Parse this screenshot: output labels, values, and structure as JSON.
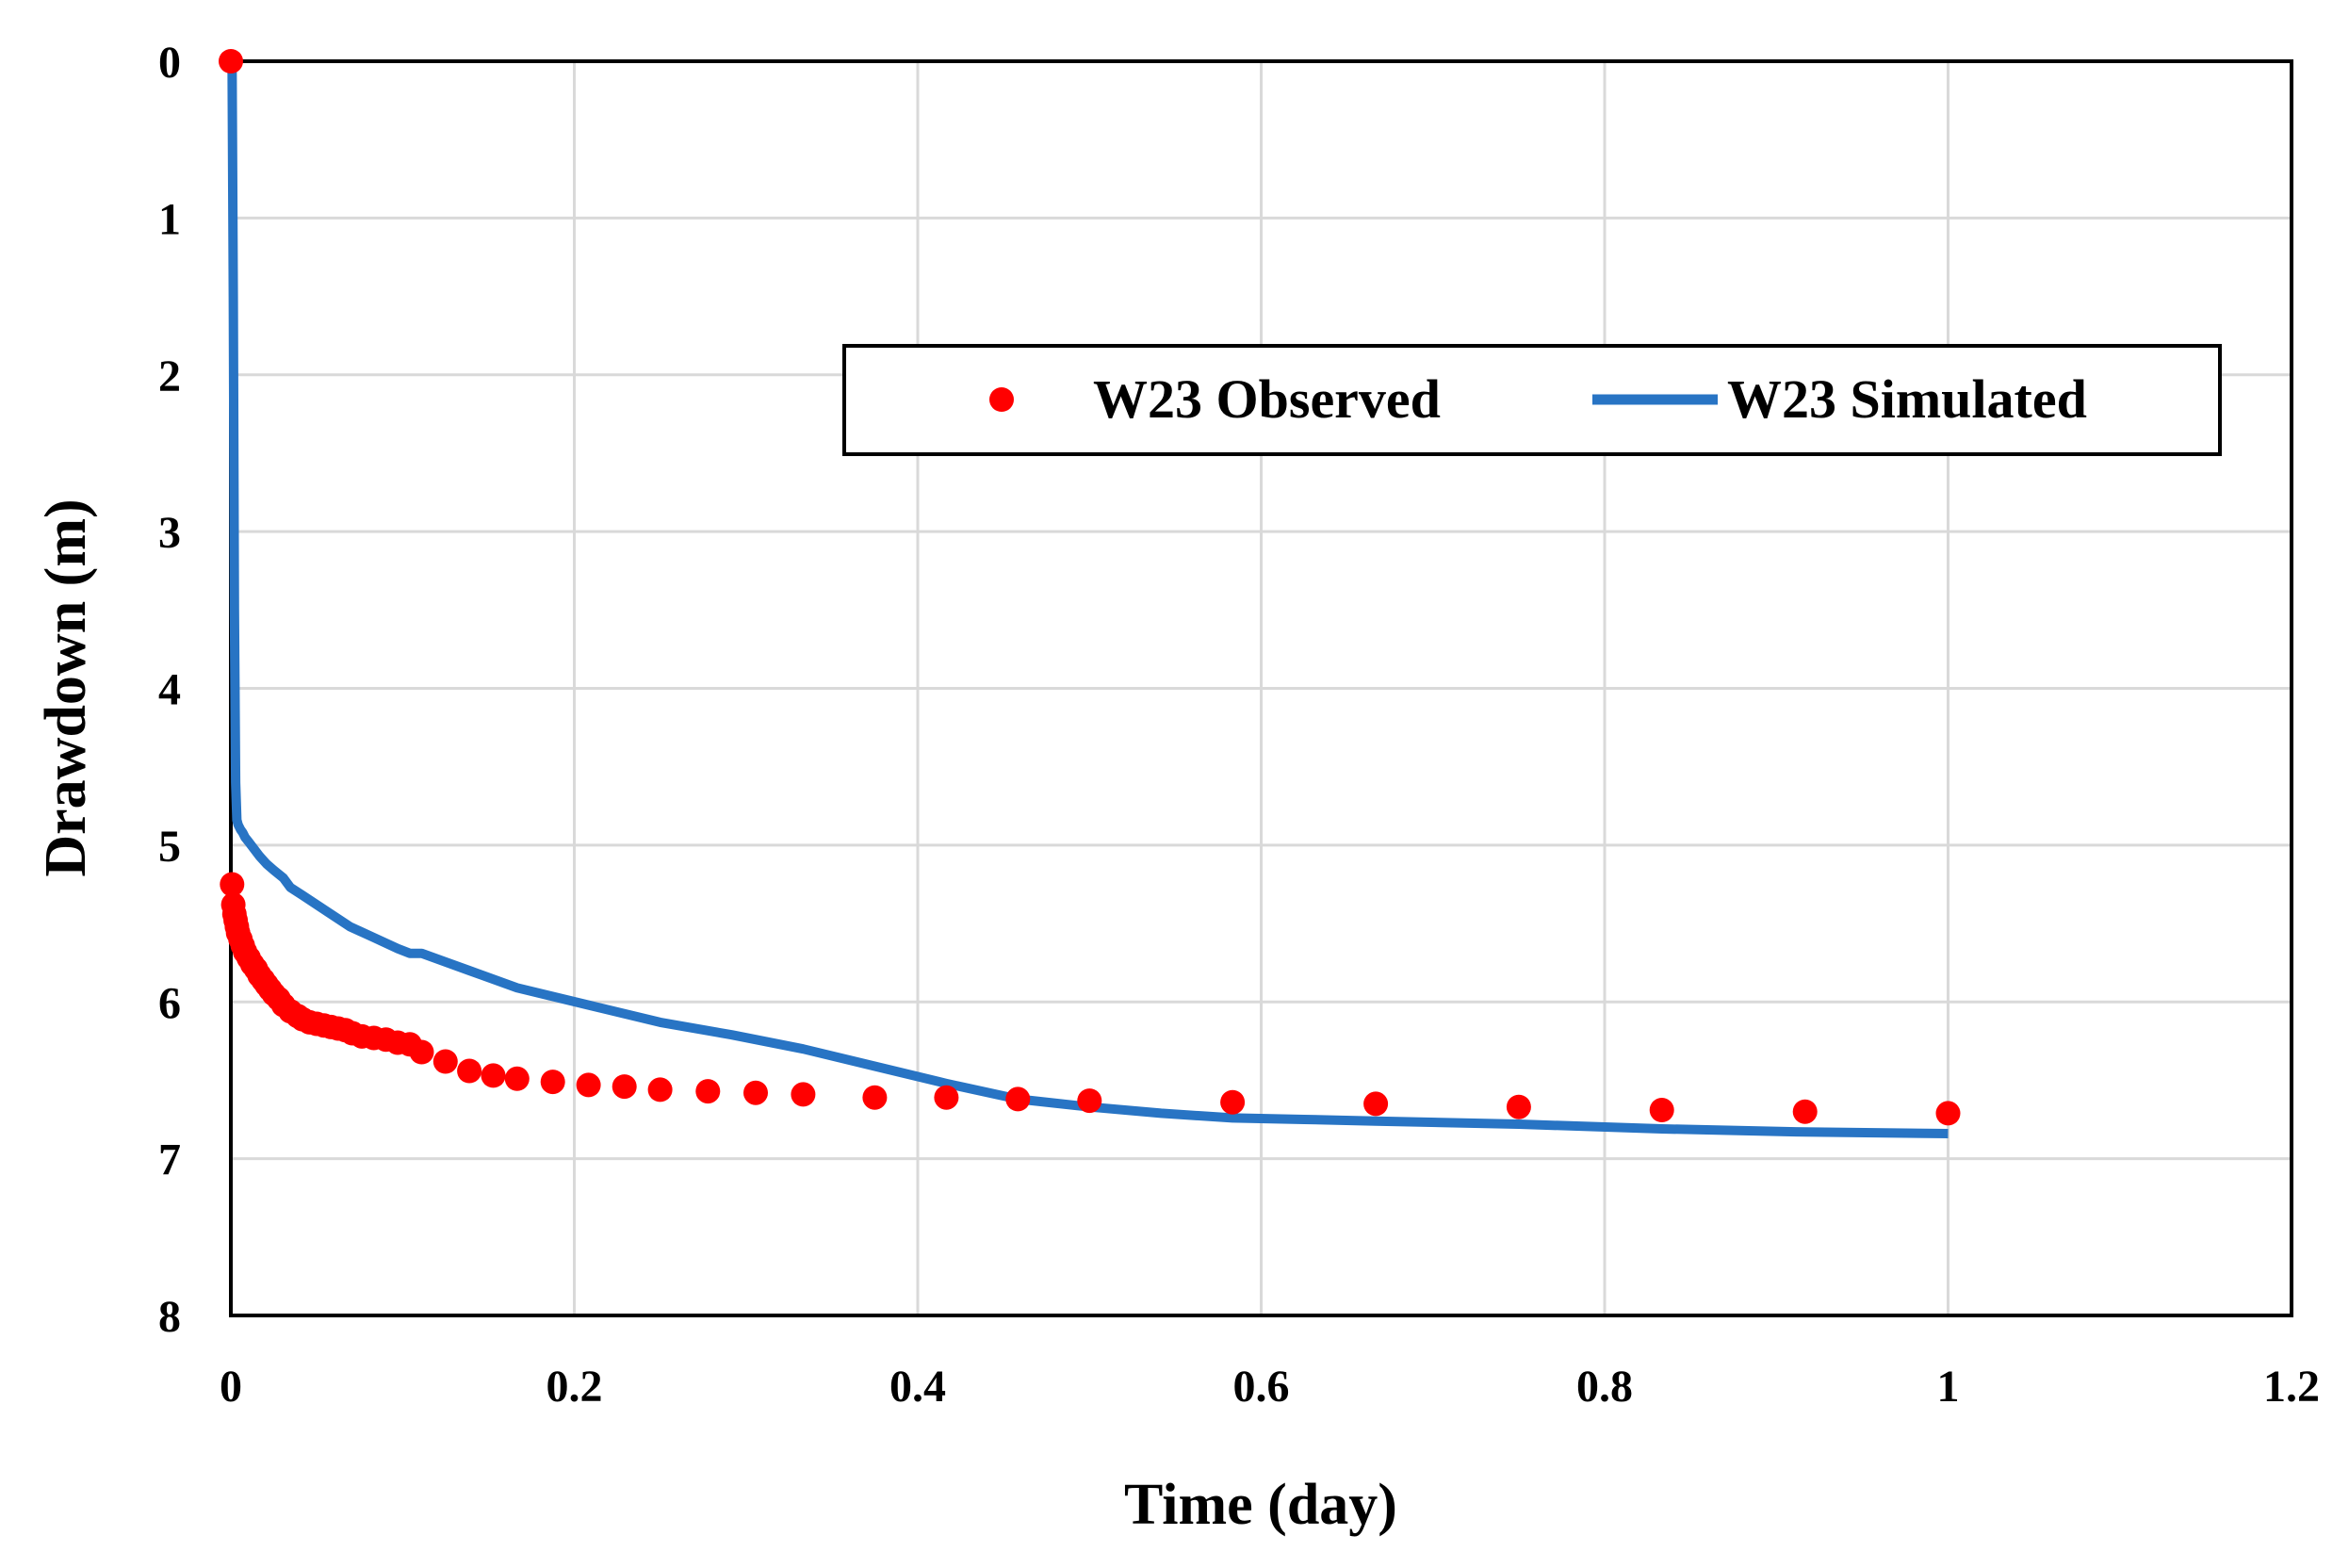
{
  "chart_data": {
    "type": "scatter",
    "title": "",
    "xlabel": "Time (day)",
    "ylabel": "Drawdown (m)",
    "xlim": [
      0,
      1.2
    ],
    "ylim": [
      0,
      8
    ],
    "y_inverted": true,
    "x_ticks": [
      0,
      0.2,
      0.4,
      0.6,
      0.8,
      1,
      1.2
    ],
    "x_tick_labels": [
      "0",
      "0.2",
      "0.4",
      "0.6",
      "0.8",
      "1",
      "1.2"
    ],
    "y_ticks": [
      0,
      1,
      2,
      3,
      4,
      5,
      6,
      7,
      8
    ],
    "y_tick_labels": [
      "0",
      "1",
      "2",
      "3",
      "4",
      "5",
      "6",
      "7",
      "8"
    ],
    "grid": true,
    "legend_position": "upper-right",
    "series": [
      {
        "name": "W23 Observed",
        "kind": "markers",
        "color": "#ff0000",
        "x": [
          0,
          0.0007,
          0.0014,
          0.0021,
          0.0028,
          0.0035,
          0.0042,
          0.0056,
          0.0069,
          0.0083,
          0.0104,
          0.0125,
          0.0146,
          0.0167,
          0.0188,
          0.0208,
          0.0229,
          0.025,
          0.0278,
          0.0306,
          0.0347,
          0.0389,
          0.0417,
          0.0458,
          0.05,
          0.0542,
          0.0583,
          0.0625,
          0.0667,
          0.0708,
          0.0764,
          0.0833,
          0.0903,
          0.0972,
          0.1042,
          0.1111,
          0.125,
          0.1389,
          0.1528,
          0.1667,
          0.1875,
          0.2083,
          0.2292,
          0.25,
          0.2778,
          0.3056,
          0.3333,
          0.375,
          0.4167,
          0.4583,
          0.5,
          0.5833,
          0.6667,
          0.75,
          0.8333,
          0.9167,
          1.0
        ],
        "y": [
          0,
          5.25,
          5.38,
          5.44,
          5.48,
          5.52,
          5.56,
          5.6,
          5.64,
          5.68,
          5.72,
          5.76,
          5.79,
          5.83,
          5.86,
          5.89,
          5.92,
          5.95,
          5.98,
          6.02,
          6.06,
          6.09,
          6.11,
          6.13,
          6.14,
          6.15,
          6.16,
          6.17,
          6.18,
          6.2,
          6.22,
          6.23,
          6.24,
          6.26,
          6.27,
          6.32,
          6.38,
          6.44,
          6.47,
          6.49,
          6.51,
          6.53,
          6.54,
          6.56,
          6.57,
          6.58,
          6.59,
          6.61,
          6.61,
          6.62,
          6.63,
          6.64,
          6.65,
          6.67,
          6.69,
          6.7,
          6.71
        ]
      },
      {
        "name": "W23 Simulated",
        "kind": "line",
        "color": "#2874c4",
        "x": [
          0.0007,
          0.0014,
          0.0021,
          0.0028,
          0.0035,
          0.0042,
          0.0056,
          0.0069,
          0.0083,
          0.0104,
          0.0125,
          0.0167,
          0.0208,
          0.025,
          0.0306,
          0.0347,
          0.0417,
          0.0556,
          0.0694,
          0.0833,
          0.0972,
          0.1042,
          0.1111,
          0.1389,
          0.1667,
          0.2083,
          0.25,
          0.2917,
          0.3333,
          0.375,
          0.4167,
          0.4583,
          0.5,
          0.5417,
          0.5833,
          0.625,
          0.6667,
          0.75,
          0.8333,
          0.9167,
          1.0
        ],
        "y": [
          0.0,
          1.5,
          3.5,
          4.6,
          4.84,
          4.87,
          4.9,
          4.92,
          4.95,
          4.98,
          5.01,
          5.07,
          5.12,
          5.16,
          5.21,
          5.27,
          5.32,
          5.42,
          5.52,
          5.59,
          5.66,
          5.69,
          5.69,
          5.8,
          5.91,
          6.02,
          6.13,
          6.21,
          6.3,
          6.41,
          6.52,
          6.62,
          6.67,
          6.71,
          6.74,
          6.75,
          6.76,
          6.78,
          6.81,
          6.83,
          6.84
        ]
      }
    ]
  }
}
